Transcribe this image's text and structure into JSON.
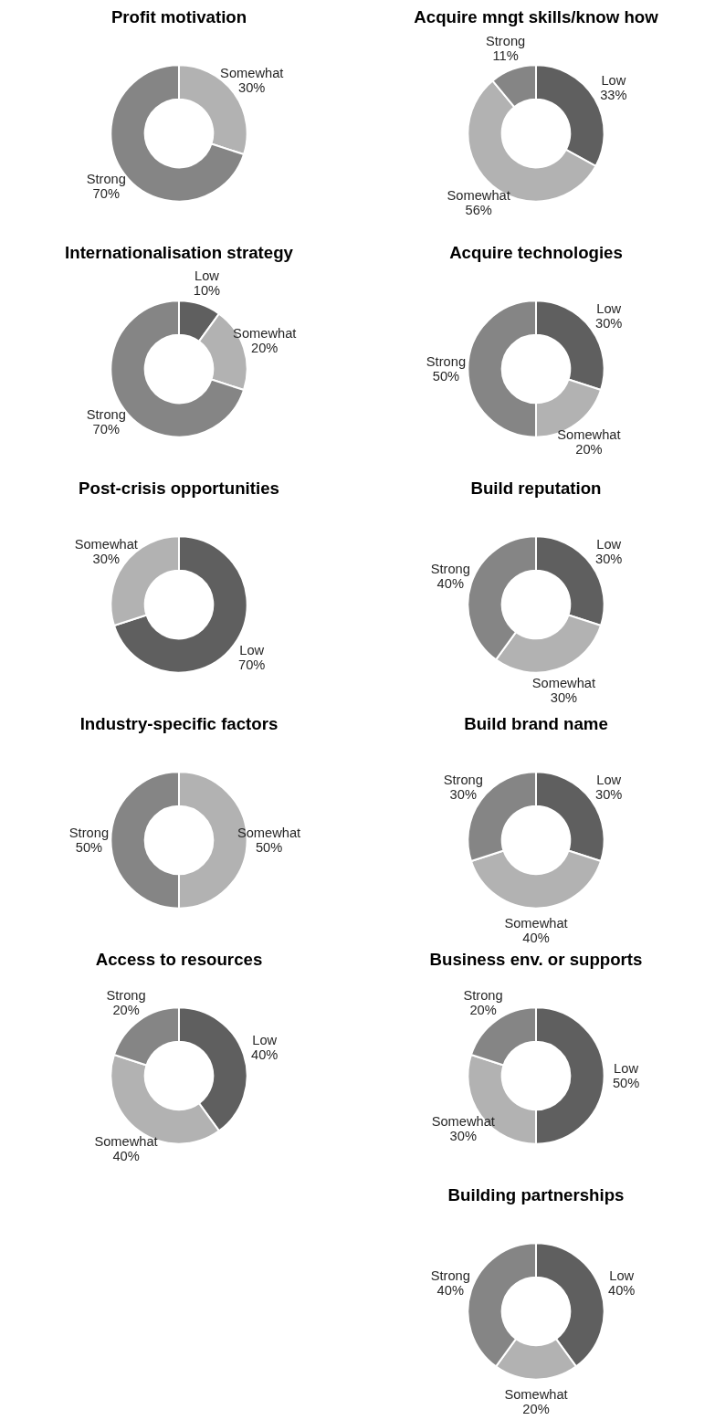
{
  "chart_data": [
    {
      "type": "donut",
      "title": "Profit motivation",
      "categories": [
        "Somewhat",
        "Strong"
      ],
      "values": [
        30,
        70
      ],
      "value_labels": [
        "30%",
        "70%"
      ],
      "colors": [
        "#b2b2b2",
        "#858585"
      ]
    },
    {
      "type": "donut",
      "title": "Acquire mngt skills/know how",
      "categories": [
        "Low",
        "Somewhat",
        "Strong"
      ],
      "values": [
        33,
        56,
        11
      ],
      "value_labels": [
        "33%",
        "56%",
        "11%"
      ],
      "colors": [
        "#5f5f5f",
        "#b2b2b2",
        "#858585"
      ]
    },
    {
      "type": "donut",
      "title": "Internationalisation strategy",
      "categories": [
        "Low",
        "Somewhat",
        "Strong"
      ],
      "values": [
        10,
        20,
        70
      ],
      "value_labels": [
        "10%",
        "20%",
        "70%"
      ],
      "colors": [
        "#5f5f5f",
        "#b2b2b2",
        "#858585"
      ]
    },
    {
      "type": "donut",
      "title": "Acquire technologies",
      "categories": [
        "Low",
        "Somewhat",
        "Strong"
      ],
      "values": [
        30,
        20,
        50
      ],
      "value_labels": [
        "30%",
        "20%",
        "50%"
      ],
      "colors": [
        "#5f5f5f",
        "#b2b2b2",
        "#858585"
      ]
    },
    {
      "type": "donut",
      "title": "Post-crisis opportunities",
      "categories": [
        "Low",
        "Somewhat"
      ],
      "values": [
        70,
        30
      ],
      "value_labels": [
        "70%",
        "30%"
      ],
      "colors": [
        "#5f5f5f",
        "#b2b2b2"
      ]
    },
    {
      "type": "donut",
      "title": "Build reputation",
      "categories": [
        "Low",
        "Somewhat",
        "Strong"
      ],
      "values": [
        30,
        30,
        40
      ],
      "value_labels": [
        "30%",
        "30%",
        "40%"
      ],
      "colors": [
        "#5f5f5f",
        "#b2b2b2",
        "#858585"
      ]
    },
    {
      "type": "donut",
      "title": "Industry-specific factors",
      "categories": [
        "Somewhat",
        "Strong"
      ],
      "values": [
        50,
        50
      ],
      "value_labels": [
        "50%",
        "50%"
      ],
      "colors": [
        "#b2b2b2",
        "#858585"
      ]
    },
    {
      "type": "donut",
      "title": "Build brand name",
      "categories": [
        "Low",
        "Somewhat",
        "Strong"
      ],
      "values": [
        30,
        40,
        30
      ],
      "value_labels": [
        "30%",
        "40%",
        "30%"
      ],
      "colors": [
        "#5f5f5f",
        "#b2b2b2",
        "#858585"
      ]
    },
    {
      "type": "donut",
      "title": "Access to resources",
      "categories": [
        "Low",
        "Somewhat",
        "Strong"
      ],
      "values": [
        40,
        40,
        20
      ],
      "value_labels": [
        "40%",
        "40%",
        "20%"
      ],
      "colors": [
        "#5f5f5f",
        "#b2b2b2",
        "#858585"
      ]
    },
    {
      "type": "donut",
      "title": "Business env. or supports",
      "categories": [
        "Low",
        "Somewhat",
        "Strong"
      ],
      "values": [
        50,
        30,
        20
      ],
      "value_labels": [
        "50%",
        "30%",
        "20%"
      ],
      "colors": [
        "#5f5f5f",
        "#b2b2b2",
        "#858585"
      ]
    },
    {
      "type": "donut",
      "title": "Building partnerships",
      "categories": [
        "Low",
        "Somewhat",
        "Strong"
      ],
      "values": [
        40,
        20,
        40
      ],
      "value_labels": [
        "40%",
        "20%",
        "40%"
      ],
      "colors": [
        "#5f5f5f",
        "#b2b2b2",
        "#858585"
      ]
    }
  ]
}
